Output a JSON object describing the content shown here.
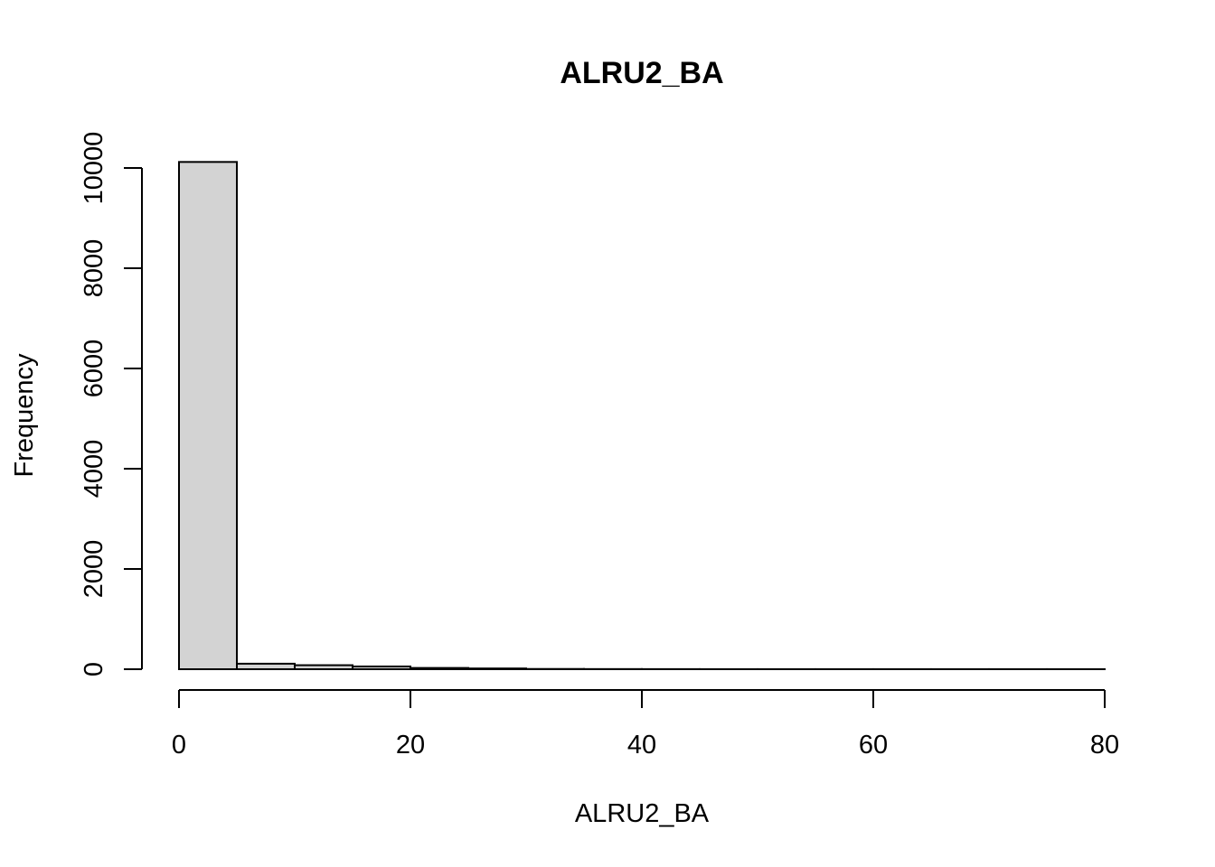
{
  "chart_data": {
    "type": "bar",
    "title": "ALRU2_BA",
    "xlabel": "ALRU2_BA",
    "ylabel": "Frequency",
    "bins": [
      {
        "start": 0,
        "end": 5,
        "count": 10120
      },
      {
        "start": 5,
        "end": 10,
        "count": 110
      },
      {
        "start": 10,
        "end": 15,
        "count": 80
      },
      {
        "start": 15,
        "end": 20,
        "count": 55
      },
      {
        "start": 20,
        "end": 25,
        "count": 25
      },
      {
        "start": 25,
        "end": 30,
        "count": 15
      },
      {
        "start": 30,
        "end": 35,
        "count": 5
      },
      {
        "start": 35,
        "end": 40,
        "count": 3
      },
      {
        "start": 40,
        "end": 45,
        "count": 2
      },
      {
        "start": 45,
        "end": 50,
        "count": 1
      },
      {
        "start": 50,
        "end": 55,
        "count": 1
      },
      {
        "start": 55,
        "end": 60,
        "count": 1
      },
      {
        "start": 60,
        "end": 65,
        "count": 1
      },
      {
        "start": 65,
        "end": 70,
        "count": 1
      },
      {
        "start": 70,
        "end": 75,
        "count": 1
      },
      {
        "start": 75,
        "end": 80,
        "count": 1
      }
    ],
    "xlim": [
      0,
      80
    ],
    "ylim": [
      0,
      10000
    ],
    "x_ticks": [
      0,
      20,
      40,
      60,
      80
    ],
    "x_tick_labels": [
      "0",
      "20",
      "40",
      "60",
      "80"
    ],
    "y_ticks": [
      0,
      2000,
      4000,
      6000,
      8000,
      10000
    ],
    "y_tick_labels": [
      "0",
      "2000",
      "4000",
      "6000",
      "8000",
      "10000"
    ],
    "grid": false,
    "bar_color": "#d3d3d3",
    "edge_color": "#000000"
  }
}
